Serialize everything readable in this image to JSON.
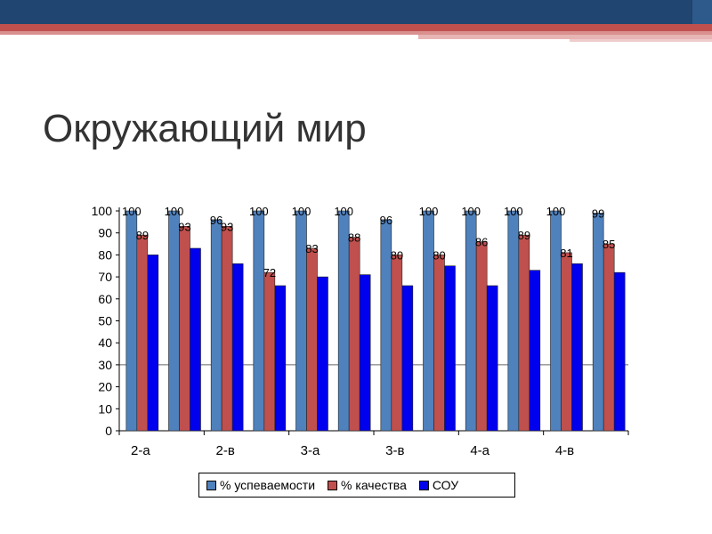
{
  "slide": {
    "title": "Окружающий мир"
  },
  "colors": {
    "topbar": "#1f4570",
    "accent": "#c0504d"
  },
  "chart_data": {
    "type": "bar",
    "title": "",
    "xlabel": "",
    "ylabel": "",
    "ylim": [
      0,
      100
    ],
    "yticks": [
      0,
      10,
      20,
      30,
      40,
      50,
      60,
      70,
      80,
      90,
      100
    ],
    "category_labels": [
      "2-а",
      "2-в",
      "3-а",
      "3-в",
      "4-а",
      "4-в"
    ],
    "groups": 12,
    "legend_position": "bottom",
    "series": [
      {
        "name": "% успеваемости",
        "color": "#4f81bd",
        "values": [
          100,
          100,
          96,
          100,
          100,
          100,
          96,
          100,
          100,
          100,
          100,
          99
        ],
        "data_labels": [
          "100",
          "100",
          "96",
          "100",
          "100",
          "100",
          "96",
          "100",
          "100",
          "100",
          "100",
          "99"
        ]
      },
      {
        "name": "% качества",
        "color": "#c0504d",
        "values": [
          89,
          93,
          93,
          72,
          83,
          88,
          80,
          80,
          86,
          89,
          81,
          85
        ],
        "data_labels": [
          "89",
          "93",
          "93",
          "72",
          "83",
          "88",
          "80",
          "80",
          "86",
          "89",
          "81",
          "85"
        ]
      },
      {
        "name": "СОУ",
        "color": "#0000ee",
        "values": [
          80,
          83,
          76,
          66,
          70,
          71,
          66,
          75,
          66,
          73,
          76,
          72
        ],
        "data_labels": []
      }
    ]
  }
}
